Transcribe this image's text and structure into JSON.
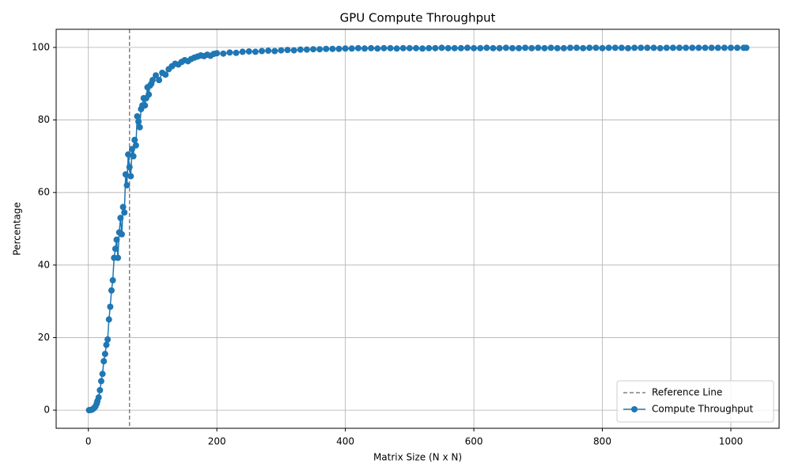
{
  "chart_data": {
    "type": "line",
    "title": "GPU Compute Throughput",
    "x_label": "Matrix Size (N x N)",
    "y_label": "Percentage",
    "x": [
      1,
      3,
      5,
      7,
      9,
      11,
      13,
      14,
      16,
      18,
      20,
      22,
      24,
      26,
      28,
      30,
      32,
      34,
      36,
      38,
      40,
      42,
      44,
      46,
      48,
      50,
      52,
      54,
      56,
      58,
      60,
      62,
      64,
      66,
      68,
      70,
      72,
      74,
      76,
      78,
      80,
      82,
      84,
      86,
      88,
      90,
      92,
      94,
      96,
      98,
      100,
      105,
      110,
      115,
      120,
      125,
      130,
      135,
      140,
      145,
      150,
      155,
      160,
      165,
      170,
      175,
      180,
      185,
      190,
      195,
      200,
      210,
      220,
      230,
      240,
      250,
      260,
      270,
      280,
      290,
      300,
      310,
      320,
      330,
      340,
      350,
      360,
      370,
      380,
      390,
      400,
      410,
      420,
      430,
      440,
      450,
      460,
      470,
      480,
      490,
      500,
      510,
      520,
      530,
      540,
      550,
      560,
      570,
      580,
      590,
      600,
      610,
      620,
      630,
      640,
      650,
      660,
      670,
      680,
      690,
      700,
      710,
      720,
      730,
      740,
      750,
      760,
      770,
      780,
      790,
      800,
      810,
      820,
      830,
      840,
      850,
      860,
      870,
      880,
      890,
      900,
      910,
      920,
      930,
      940,
      950,
      960,
      970,
      980,
      990,
      1000,
      1010,
      1020,
      1024
    ],
    "series": [
      {
        "name": "Compute Throughput",
        "color": "#1f77b4",
        "values": [
          0,
          0.05,
          0.1,
          0.3,
          0.6,
          1.0,
          1.8,
          2.5,
          3.5,
          5.5,
          8,
          10,
          13.5,
          15.5,
          18,
          19.5,
          25,
          28.5,
          33,
          35.8,
          42,
          44.5,
          47,
          42,
          49,
          53,
          48.5,
          56,
          54.5,
          65,
          62,
          70.5,
          67,
          64.5,
          72,
          70,
          74.5,
          73,
          81,
          79.5,
          78,
          83,
          84,
          86,
          84,
          86,
          89,
          87,
          89.5,
          90,
          91,
          92.3,
          91,
          93,
          92.5,
          94,
          94.8,
          95.5,
          95.3,
          96,
          96.5,
          96.2,
          96.8,
          97.2,
          97.5,
          97.8,
          97.6,
          98,
          97.7,
          98.2,
          98.4,
          98.3,
          98.6,
          98.5,
          98.8,
          98.9,
          98.8,
          99,
          99.1,
          99,
          99.2,
          99.3,
          99.2,
          99.4,
          99.4,
          99.5,
          99.5,
          99.6,
          99.6,
          99.6,
          99.7,
          99.7,
          99.8,
          99.7,
          99.8,
          99.7,
          99.8,
          99.8,
          99.7,
          99.8,
          99.8,
          99.8,
          99.7,
          99.8,
          99.8,
          99.9,
          99.8,
          99.8,
          99.8,
          99.9,
          99.8,
          99.8,
          99.9,
          99.8,
          99.8,
          99.9,
          99.8,
          99.8,
          99.9,
          99.8,
          99.9,
          99.8,
          99.9,
          99.8,
          99.8,
          99.9,
          99.9,
          99.8,
          99.9,
          99.9,
          99.8,
          99.9,
          99.9,
          99.9,
          99.8,
          99.9,
          99.9,
          99.9,
          99.9,
          99.8,
          99.9,
          99.9,
          99.9,
          99.9,
          99.9,
          99.9,
          99.9,
          99.9,
          99.9,
          99.9,
          99.9,
          99.9,
          99.9,
          99.9
        ]
      }
    ],
    "reference_line": {
      "name": "Reference Line",
      "x": 64,
      "color": "#808080"
    },
    "xlim": [
      -50.15,
      1075.15
    ],
    "ylim": [
      -5,
      105
    ],
    "xticks": [
      0,
      200,
      400,
      600,
      800,
      1000
    ],
    "yticks": [
      0,
      20,
      40,
      60,
      80,
      100
    ],
    "grid": true,
    "legend": "lower right"
  }
}
